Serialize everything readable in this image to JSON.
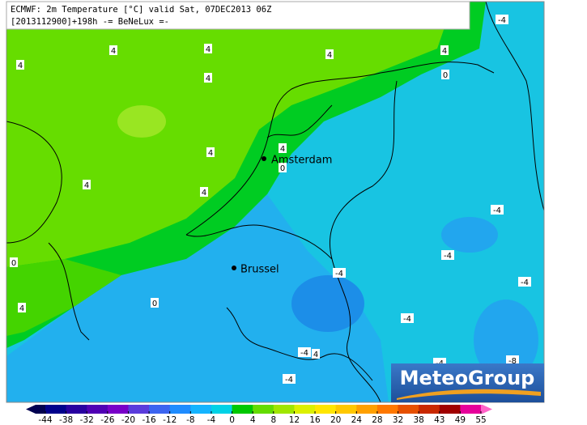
{
  "header": {
    "line1": "ECMWF: 2m Temperature [°C] valid Sat, 07DEC2013 06Z",
    "line2": "[2013112900]+198h -= BeNeLux =-"
  },
  "cities": [
    "Amsterdam",
    "Brussel"
  ],
  "contour_labels": [
    4,
    4,
    4,
    4,
    4,
    4,
    0,
    -4,
    4,
    4,
    4,
    4,
    0,
    4,
    0,
    0,
    -4,
    -4,
    -4,
    -4,
    -4,
    -4,
    4,
    -4,
    -8,
    -4
  ],
  "colorbar": {
    "ticks": [
      -44,
      -38,
      -32,
      -26,
      -20,
      -16,
      -12,
      -8,
      -4,
      0,
      4,
      8,
      12,
      16,
      20,
      24,
      28,
      32,
      38,
      43,
      49,
      55
    ],
    "colors": [
      "#000050",
      "#00008c",
      "#2800a0",
      "#5000b4",
      "#7800c8",
      "#5a3cdc",
      "#3c64f0",
      "#1e8cff",
      "#14b4ff",
      "#00d2e6",
      "#00c800",
      "#64dc00",
      "#a0e600",
      "#dcf000",
      "#ffe600",
      "#ffc800",
      "#ffa000",
      "#ff7800",
      "#e65000",
      "#c82800",
      "#a00000",
      "#e6009a",
      "#ff64c8"
    ]
  },
  "logo": "MeteoGroup"
}
